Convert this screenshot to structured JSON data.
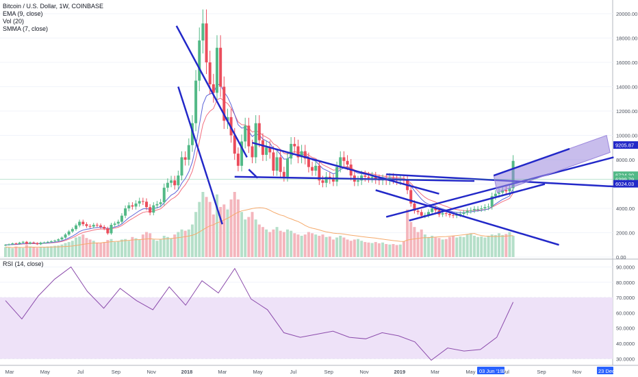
{
  "legend": {
    "title": "Bitcoin / U.S. Dollar, 1W, COINBASE",
    "ema": "EMA (9, close)",
    "vol": "Vol (20)",
    "smma": "SMMA (7, close)",
    "rsi": "RSI (14, close)"
  },
  "colors": {
    "up": "#53b987",
    "down": "#eb4d5c",
    "vol_up": "#b5dfc9",
    "vol_down": "#f4b6bd",
    "ema": "#5b63d8",
    "smma": "#f26d7d",
    "vol_ma": "#f5a96a",
    "trendline": "#2228c8",
    "channel": "#9a86dc",
    "rsi_line": "#8b4bab",
    "rsi_band": "#eee2f8",
    "axis_bg": "#0f3d8c"
  },
  "x_axis_labels": [
    {
      "label": "Mar",
      "bold": false
    },
    {
      "label": "May",
      "bold": false
    },
    {
      "label": "Jul",
      "bold": false
    },
    {
      "label": "Sep",
      "bold": false
    },
    {
      "label": "Nov",
      "bold": false
    },
    {
      "label": "2018",
      "bold": true
    },
    {
      "label": "Mar",
      "bold": false
    },
    {
      "label": "May",
      "bold": false
    },
    {
      "label": "Jul",
      "bold": false
    },
    {
      "label": "Sep",
      "bold": false
    },
    {
      "label": "Nov",
      "bold": false
    },
    {
      "label": "2019",
      "bold": true
    },
    {
      "label": "Mar",
      "bold": false
    },
    {
      "label": "May",
      "bold": false
    },
    {
      "label": "Jul",
      "bold": false
    },
    {
      "label": "Sep",
      "bold": false
    },
    {
      "label": "Nov",
      "bold": false
    }
  ],
  "x_axis_highlights": {
    "current_date": "03 Jun '19",
    "current_suffix": "9",
    "end_date": "23 Dec"
  },
  "chart_data": [
    {
      "type": "candlestick",
      "title": "Bitcoin / U.S. Dollar, 1W, COINBASE",
      "x_range": [
        "2017-02",
        "2019-12"
      ],
      "ylim": [
        0,
        20000
      ],
      "y_ticks": [
        "0.00",
        "2000.00",
        "4000.00",
        "6000.00",
        "8000.00",
        "10000.00",
        "12000.00",
        "14000.00",
        "16000.00",
        "18000.00",
        "20000.00"
      ],
      "price_labels": [
        {
          "value": 9205.87,
          "label": "9205.87",
          "color": "#2228c8"
        },
        {
          "value": 6724.3,
          "label": "6724.30",
          "color": "#53b987"
        },
        {
          "value": 6399.79,
          "label": "6399.79",
          "color": "#53b987"
        },
        {
          "value": 6024.03,
          "label": "6024.03",
          "color": "#2228c8"
        }
      ],
      "close": [
        1000,
        1050,
        1120,
        1080,
        1180,
        1250,
        1100,
        1200,
        1150,
        1050,
        1180,
        1200,
        1250,
        1300,
        1350,
        1450,
        1600,
        1850,
        2100,
        2300,
        2600,
        2900,
        2700,
        2550,
        2500,
        2650,
        2600,
        2480,
        2350,
        1950,
        2650,
        2750,
        2900,
        3400,
        4000,
        4250,
        4150,
        4400,
        4600,
        4550,
        4100,
        3650,
        4250,
        4350,
        4500,
        5700,
        6100,
        6300,
        5900,
        6700,
        8200,
        8000,
        9200,
        11000,
        14500,
        17800,
        19200,
        16000,
        14200,
        13500,
        17200,
        14000,
        11200,
        11500,
        10000,
        8500,
        7500,
        9500,
        10800,
        9100,
        8200,
        11000,
        9600,
        8400,
        9000,
        8600,
        7100,
        8200,
        7000,
        6600,
        8100,
        9300,
        9100,
        8200,
        8700,
        8100,
        7400,
        7100,
        7500,
        6300,
        6100,
        6600,
        6400,
        6200,
        7400,
        8200,
        7900,
        7600,
        6700,
        6200,
        6300,
        6700,
        6600,
        6500,
        6600,
        6400,
        6300,
        6400,
        6300,
        6500,
        6400,
        6300,
        6350,
        6300,
        5500,
        4400,
        3800,
        3700,
        3400,
        3450,
        3700,
        4000,
        3850,
        3500,
        3600,
        3550,
        3450,
        3400,
        3500,
        3550,
        3650,
        3800,
        3850,
        3950,
        3950,
        4000,
        4100,
        4150,
        5000,
        5200,
        5300,
        5500,
        5400,
        5650,
        7900
      ],
      "volume": [
        400,
        380,
        350,
        420,
        380,
        360,
        480,
        420,
        390,
        370,
        400,
        410,
        420,
        430,
        450,
        460,
        500,
        560,
        600,
        650,
        780,
        820,
        900,
        760,
        700,
        650,
        580,
        560,
        600,
        680,
        720,
        600,
        620,
        700,
        720,
        650,
        800,
        750,
        700,
        900,
        1000,
        950,
        700,
        650,
        700,
        850,
        800,
        750,
        900,
        1000,
        1100,
        1050,
        1100,
        1300,
        1800,
        2200,
        2600,
        2400,
        2200,
        1700,
        2500,
        2000,
        2100,
        1900,
        2300,
        2600,
        2300,
        1800,
        1500,
        1600,
        1800,
        1500,
        1300,
        1200,
        1100,
        1000,
        1100,
        1200,
        1050,
        1000,
        1100,
        1050,
        950,
        900,
        850,
        900,
        1000,
        950,
        900,
        850,
        900,
        800,
        820,
        700,
        780,
        850,
        780,
        700,
        650,
        700,
        720,
        650,
        600,
        580,
        560,
        600,
        550,
        580,
        520,
        500,
        520,
        480,
        500,
        620,
        1900,
        1400,
        1200,
        1000,
        1100,
        900,
        800,
        850,
        780,
        760,
        700,
        720,
        800,
        850,
        780,
        820,
        800,
        900,
        950,
        850,
        800,
        820,
        780,
        850,
        900,
        880,
        950,
        880,
        920,
        1000,
        850
      ]
    },
    {
      "type": "line",
      "title": "RSI (14, close)",
      "ylim": [
        27,
        92
      ],
      "y_ticks": [
        "30.0000",
        "40.0000",
        "50.0000",
        "60.0000",
        "70.0000",
        "80.0000",
        "90.0000"
      ],
      "band": [
        30,
        70
      ],
      "x": [
        "2017-02",
        "2017-03",
        "2017-04",
        "2017-05",
        "2017-06",
        "2017-07",
        "2017-07",
        "2017-08",
        "2017-08",
        "2017-09",
        "2017-09",
        "2017-10",
        "2017-11",
        "2017-12",
        "2017-12",
        "2018-01",
        "2018-02",
        "2018-03",
        "2018-04",
        "2018-05",
        "2018-06",
        "2018-07",
        "2018-08",
        "2018-09",
        "2018-10",
        "2018-11",
        "2018-12",
        "2019-01",
        "2019-02",
        "2019-03",
        "2019-04",
        "2019-05"
      ],
      "values": [
        68,
        56,
        71,
        82,
        90,
        74,
        63,
        76,
        68,
        62,
        77,
        65,
        81,
        73,
        89,
        69,
        62,
        47,
        44,
        46,
        48,
        44,
        43,
        47,
        45,
        41,
        29,
        37,
        35,
        36,
        44,
        67
      ]
    }
  ]
}
